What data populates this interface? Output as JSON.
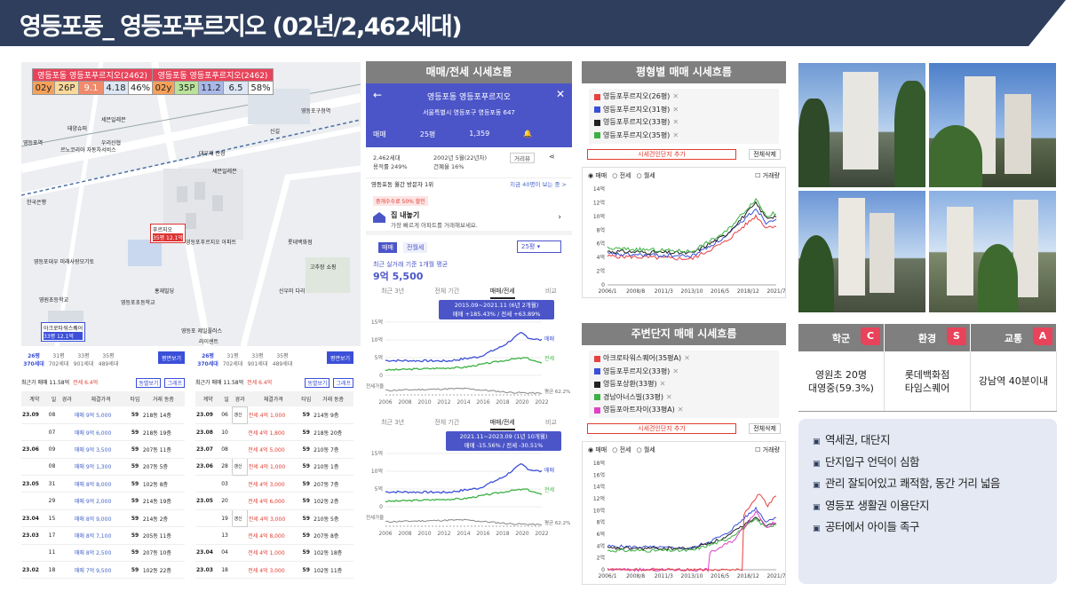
{
  "title": "영등포동_ 영등포푸르지오 (02년/2,462세대)",
  "map": {
    "header_left": "영등포동 영등포푸르지오(2462)",
    "header_right": "영등포동 영등포푸르지오(2462)",
    "row_left": [
      "02y",
      "26P",
      "9.1",
      "4.18",
      "46%"
    ],
    "row_right": [
      "02y",
      "35P",
      "11.2",
      "6.5",
      "58%"
    ],
    "labels": [
      "세븐일레븐",
      "태양슈퍼",
      "신길",
      "영등포구청역",
      "영등포역",
      "우리신협",
      "푸르지오",
      "35평 12.1억",
      "영등포푸르지오 아파트",
      "세븐일레븐",
      "르노코리아 자동차서비스",
      "대우재 산정",
      "한국은행",
      "영등포대우 미래사랑모기토",
      "영등포초등학교",
      "고추장 쇼핑",
      "신우미 다리",
      "롯데백화점",
      "홍재빌딩",
      "영원초등학교",
      "영등포 제일플러스",
      "아크로타워스퀘어",
      "33평 12.1억",
      "라이센트"
    ]
  },
  "trade_left": {
    "tabs": [
      [
        "26평",
        "370세대"
      ],
      [
        "31평",
        "702세대"
      ],
      [
        "33평",
        "901세대"
      ],
      [
        "35평",
        "489세대"
      ]
    ],
    "graph_btn": "평면보기",
    "summary": "최근가 매매 11.58억",
    "pct": "전세 6.4억",
    "btn1": "동별보기",
    "btn2": "그래프",
    "headers": [
      "계약",
      "일",
      "경과",
      "체결가격",
      "타입",
      "거래 동층"
    ],
    "rows": [
      [
        "23.09",
        "08",
        "",
        "매매 9억 5,000",
        "59",
        "218동 14층"
      ],
      [
        "",
        "07",
        "",
        "매매 9억 6,000",
        "59",
        "218동 19층"
      ],
      [
        "23.06",
        "09",
        "",
        "매매 9억 3,500",
        "59",
        "207동 11층"
      ],
      [
        "",
        "08",
        "",
        "매매 9억 1,300",
        "59",
        "207동 5층"
      ],
      [
        "23.05",
        "31",
        "",
        "매매 8억 8,000",
        "59",
        "102동 8층"
      ],
      [
        "",
        "29",
        "",
        "매매 9억 2,000",
        "59",
        "214동 19층"
      ],
      [
        "23.04",
        "15",
        "",
        "매매 8억 9,000",
        "59",
        "214동 2층"
      ],
      [
        "23.03",
        "17",
        "",
        "매매 8억 7,100",
        "59",
        "205동 11층"
      ],
      [
        "",
        "11",
        "",
        "매매 8억 2,500",
        "59",
        "207동 10층"
      ],
      [
        "23.02",
        "18",
        "",
        "매매 7억 9,500",
        "59",
        "102동 22층"
      ]
    ]
  },
  "trade_right": {
    "tabs": [
      [
        "26평",
        "370세대"
      ],
      [
        "31평",
        "702세대"
      ],
      [
        "33평",
        "901세대"
      ],
      [
        "35평",
        "489세대"
      ]
    ],
    "graph_btn": "평면보기",
    "summary": "최근가 매매 11.58억",
    "pct": "전세 6.4억",
    "btn1": "동별보기",
    "btn2": "그래프",
    "headers": [
      "계약",
      "일",
      "경과",
      "체결가격",
      "타입",
      "거래 동층"
    ],
    "rows": [
      [
        "23.09",
        "06",
        "갱신",
        "전세 4억 1,000",
        "59",
        "214동 9층"
      ],
      [
        "23.08",
        "10",
        "",
        "전세 4억 1,800",
        "59",
        "218동 20층"
      ],
      [
        "23.07",
        "08",
        "",
        "전세 4억 5,000",
        "59",
        "210동 7층"
      ],
      [
        "23.06",
        "28",
        "갱신",
        "전세 4억 1,000",
        "59",
        "210동 1층"
      ],
      [
        "",
        "03",
        "",
        "전세 4억 3,000",
        "59",
        "207동 7층"
      ],
      [
        "23.05",
        "20",
        "",
        "전세 4억 6,000",
        "59",
        "102동 2층"
      ],
      [
        "",
        "19",
        "갱신",
        "전세 4억 3,000",
        "59",
        "210동 5층"
      ],
      [
        "",
        "13",
        "",
        "전세 4억 8,000",
        "59",
        "207동 8층"
      ],
      [
        "23.04",
        "04",
        "",
        "전세 4억 1,000",
        "59",
        "102동 18층"
      ],
      [
        "23.03",
        "18",
        "",
        "전세 4억 3,000",
        "59",
        "102동 11층"
      ]
    ]
  },
  "market": {
    "head": "매매/전세 시세흐름",
    "app_title": "영등포동 영등포푸르지오",
    "address": "서울특별시 영등포구 영등포동 647",
    "type": "매매",
    "size": "25평",
    "count": "1,359",
    "info1": "2,462세대",
    "info2": "용적률 249%",
    "info3": "2002년 5월(22년차)",
    "info4": "건폐율 16%",
    "roadview": "거리뷰",
    "visitor": "영등포동 월간 방문자 1위",
    "visitor_now": "지금 40명이 보는 중 >",
    "discount": "중개수수료 50% 할인",
    "sell_title": "집 내놓기",
    "sell_sub": "가장 빠르게 아파트를 거래해보세요.",
    "tab_sale": "매매",
    "tab_rent": "전월세",
    "size2": "25평",
    "recent_label": "최근 실거래 기준 1개월 평균",
    "recent_price": "9억 5,500",
    "periods": [
      "최근 3년",
      "전체 기간",
      "매매/전세",
      "비교"
    ],
    "tip1_a": "2015.09~2021.11 (6년 2개월)",
    "tip1_b": "매매 +185.43% / 전세 +63.89%",
    "tip2_a": "2021.11~2023.09 (1년 10개월)",
    "tip2_b": "매매 -15.56% / 전세 -30.51%",
    "yticks": [
      "15억",
      "10억",
      "5억",
      "0"
    ],
    "xticks": [
      "2006",
      "2008",
      "2010",
      "2012",
      "2014",
      "2016",
      "2018",
      "2020",
      "2022"
    ],
    "leg_sale": "매매",
    "leg_rent": "전세",
    "leg_gap": "전세가율",
    "leg_avg": "평균 62.2%"
  },
  "pyeong": {
    "head": "평형별 매매 시세흐름",
    "legend": [
      [
        "영등포푸르지오(26평)",
        "#e84040"
      ],
      [
        "영등포푸르지오(31평)",
        "#3b4fd8"
      ],
      [
        "영등포푸르지오(33평)",
        "#222222"
      ],
      [
        "영등포푸르지오(35평)",
        "#3cb043"
      ]
    ],
    "add_btn": "시세견인단지 추가",
    "del_btn": "전체삭제",
    "radio": [
      "매매",
      "전세",
      "월세"
    ],
    "vol": "거래량",
    "yticks": [
      "14억",
      "12억",
      "10억",
      "8억",
      "6억",
      "4억",
      "2억",
      "0"
    ],
    "xticks": [
      "2006/1",
      "2008/8",
      "2011/3",
      "2013/10",
      "2016/5",
      "2018/12",
      "2021/7"
    ]
  },
  "nearby": {
    "head": "주변단지 매매 시세흐름",
    "legend": [
      [
        "아크로타워스퀘어(35평A)",
        "#e84040"
      ],
      [
        "영등포푸르지오(33평)",
        "#3b4fd8"
      ],
      [
        "영등포상환(33평)",
        "#222222"
      ],
      [
        "경남아너스빌(33평)",
        "#3cb043"
      ],
      [
        "영등포아트자이(33평A)",
        "#e040c8"
      ]
    ],
    "add_btn": "시세견인단지 추가",
    "del_btn": "전체삭제",
    "radio": [
      "매매",
      "전세",
      "월세"
    ],
    "vol": "거래량",
    "yticks": [
      "18억",
      "16억",
      "14억",
      "12억",
      "10억",
      "8억",
      "6억",
      "4억",
      "2억",
      "0"
    ],
    "xticks": [
      "2006/1",
      "2008/8",
      "2011/3",
      "2013/10",
      "2016/5",
      "2018/12",
      "2021/7"
    ]
  },
  "rating": {
    "cats": [
      [
        "학군",
        "C"
      ],
      [
        "환경",
        "S"
      ],
      [
        "교통",
        "A"
      ]
    ],
    "vals": [
      [
        "영원초 20명",
        "대영중(59.3%)"
      ],
      [
        "롯데백화점",
        "타임스퀘어"
      ],
      [
        "강남역 40분이내",
        ""
      ]
    ]
  },
  "notes": [
    "역세권, 대단지",
    "단지입구 언덕이 심함",
    "관리 잘되어있고 쾌적함, 동간 거리 넓음",
    "영등포 생활권 이용단지",
    "공터에서 아이들 족구"
  ],
  "colors": {
    "navy": "#2e3e5c",
    "accent": "#e8435a",
    "sale": "#3b4fd8",
    "rent": "#3cb043"
  }
}
